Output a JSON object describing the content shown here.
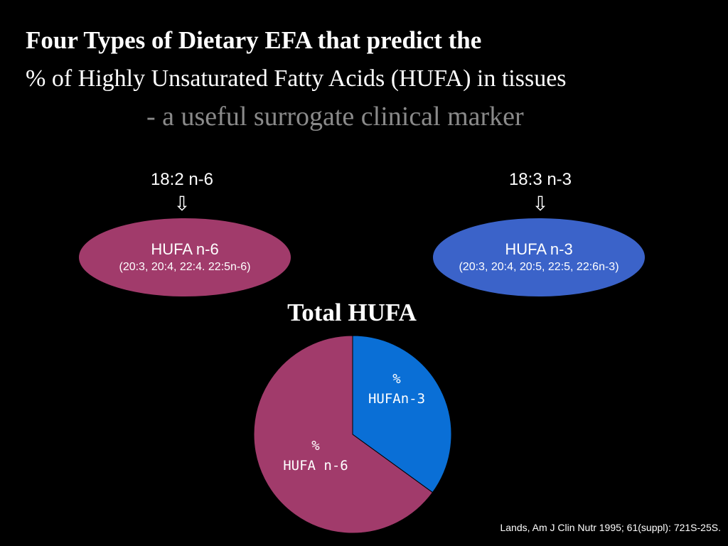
{
  "title": {
    "line1": "Four Types of Dietary EFA that predict the",
    "line2": "% of Highly Unsaturated Fatty Acids (HUFA) in tissues",
    "subtitle": "- a useful surrogate clinical marker"
  },
  "pathways": [
    {
      "precursor": "18:2 n-6",
      "arrow": "⇩",
      "product": "HUFA n-6",
      "detail": "(20:3, 20:4, 22:4. 22:5n-6)",
      "color": "#a13b6b"
    },
    {
      "precursor": "18:3 n-3",
      "arrow": "⇩",
      "product": "HUFA n-3",
      "detail": "(20:3, 20:4, 20:5, 22:5, 22:6n-3)",
      "color": "#3b63c9"
    }
  ],
  "chart_data": {
    "type": "pie",
    "title": "Total HUFA",
    "slices": [
      {
        "label_line1": "%",
        "label_line2": "HUFAn-3",
        "value": 35,
        "color": "#0a6fd6"
      },
      {
        "label_line1": "%",
        "label_line2": "HUFA n-6",
        "value": 65,
        "color": "#a13b6b"
      }
    ]
  },
  "citation": "Lands, Am J Clin Nutr 1995; 61(suppl): 721S-25S."
}
